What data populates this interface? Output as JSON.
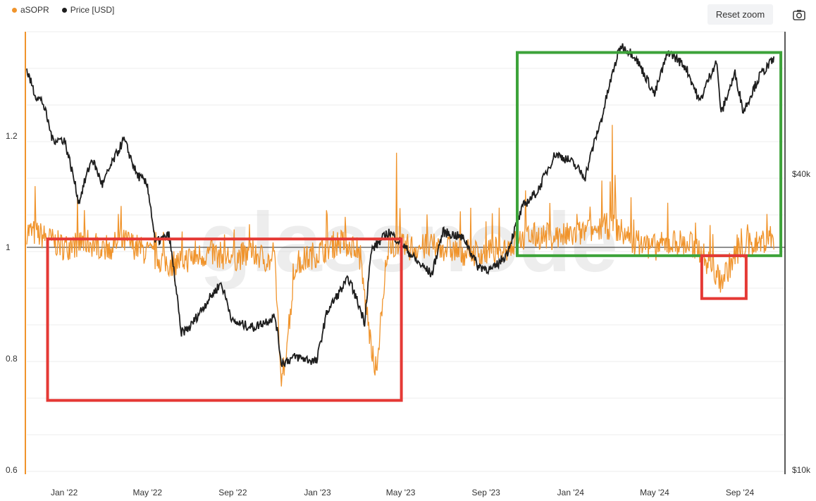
{
  "legend": {
    "asopr_label": "aSOPR",
    "price_label": "Price [USD]"
  },
  "toolbar": {
    "reset_zoom_label": "Reset zoom",
    "camera_icon": "camera-icon"
  },
  "watermark": "glassnode",
  "colors": {
    "asopr": "#f0942c",
    "price": "#1e1e1e",
    "highlight_red": "#e53935",
    "highlight_green": "#3da33a",
    "grid": "#ececec",
    "axis": "#222222"
  },
  "chart_data": {
    "type": "line",
    "x_ticks": [
      "Jan '22",
      "May '22",
      "Sep '22",
      "Jan '23",
      "May '23",
      "Sep '23",
      "Jan '24",
      "May '24",
      "Sep '24"
    ],
    "y_left_ticks": [
      "0.6",
      "0.8",
      "1",
      "1.2"
    ],
    "y_right_ticks": [
      "$10k",
      "$40k"
    ],
    "y_left_range": [
      0.6,
      1.4
    ],
    "reference_line": 1,
    "log_scale_right": true,
    "grid": true,
    "legend_position": "top-left",
    "series": [
      {
        "name": "aSOPR",
        "axis": "left",
        "keypoints": [
          [
            "2021-11-08",
            1.03
          ],
          [
            "2021-12-01",
            1.02
          ],
          [
            "2022-01-01",
            1.0
          ],
          [
            "2022-02-01",
            1.01
          ],
          [
            "2022-03-01",
            1.0
          ],
          [
            "2022-04-01",
            1.01
          ],
          [
            "2022-05-01",
            0.99
          ],
          [
            "2022-06-01",
            0.97
          ],
          [
            "2022-07-01",
            0.98
          ],
          [
            "2022-08-01",
            0.99
          ],
          [
            "2022-09-01",
            0.98
          ],
          [
            "2022-10-01",
            0.99
          ],
          [
            "2022-11-01",
            0.97
          ],
          [
            "2022-11-10",
            0.75
          ],
          [
            "2022-12-01",
            0.97
          ],
          [
            "2023-01-01",
            0.99
          ],
          [
            "2023-02-01",
            1.01
          ],
          [
            "2023-03-01",
            1.0
          ],
          [
            "2023-03-25",
            0.77
          ],
          [
            "2023-04-15",
            1.01
          ],
          [
            "2023-05-01",
            1.0
          ],
          [
            "2023-06-01",
            1.0
          ],
          [
            "2023-07-01",
            1.0
          ],
          [
            "2023-08-01",
            0.99
          ],
          [
            "2023-09-01",
            0.99
          ],
          [
            "2023-10-01",
            1.0
          ],
          [
            "2023-11-01",
            1.02
          ],
          [
            "2023-12-01",
            1.02
          ],
          [
            "2024-01-01",
            1.02
          ],
          [
            "2024-02-01",
            1.03
          ],
          [
            "2024-03-01",
            1.04
          ],
          [
            "2024-04-01",
            1.01
          ],
          [
            "2024-05-01",
            1.0
          ],
          [
            "2024-06-01",
            1.01
          ],
          [
            "2024-07-01",
            1.0
          ],
          [
            "2024-08-05",
            0.94
          ],
          [
            "2024-09-01",
            1.0
          ],
          [
            "2024-10-01",
            1.01
          ],
          [
            "2024-10-20",
            1.02
          ]
        ],
        "spikes": [
          [
            "2021-11-20",
            1.11
          ],
          [
            "2022-03-20",
            1.06
          ],
          [
            "2022-11-10",
            0.75
          ],
          [
            "2023-03-25",
            0.77
          ],
          [
            "2023-04-25",
            1.17
          ],
          [
            "2024-01-10",
            1.06
          ],
          [
            "2024-02-15",
            1.12
          ],
          [
            "2024-03-01",
            1.22
          ],
          [
            "2024-03-05",
            1.13
          ],
          [
            "2024-03-28",
            1.09
          ],
          [
            "2024-04-01",
            1.05
          ],
          [
            "2024-05-20",
            1.08
          ],
          [
            "2024-07-20",
            1.04
          ],
          [
            "2024-08-05",
            0.94
          ],
          [
            "2024-10-10",
            1.06
          ]
        ]
      },
      {
        "name": "Price [USD]",
        "axis": "right",
        "keypoints": [
          [
            "2021-11-08",
            65000
          ],
          [
            "2021-11-20",
            58000
          ],
          [
            "2021-12-01",
            56000
          ],
          [
            "2021-12-15",
            47000
          ],
          [
            "2022-01-01",
            47000
          ],
          [
            "2022-01-22",
            35000
          ],
          [
            "2022-02-10",
            43000
          ],
          [
            "2022-02-25",
            38000
          ],
          [
            "2022-03-28",
            47000
          ],
          [
            "2022-04-15",
            40000
          ],
          [
            "2022-05-01",
            38000
          ],
          [
            "2022-05-12",
            29000
          ],
          [
            "2022-06-01",
            30000
          ],
          [
            "2022-06-18",
            19000
          ],
          [
            "2022-07-01",
            19500
          ],
          [
            "2022-08-15",
            24000
          ],
          [
            "2022-09-01",
            20000
          ],
          [
            "2022-10-01",
            19500
          ],
          [
            "2022-11-01",
            20500
          ],
          [
            "2022-11-10",
            16500
          ],
          [
            "2022-12-01",
            17000
          ],
          [
            "2022-12-31",
            16600
          ],
          [
            "2023-01-15",
            21000
          ],
          [
            "2023-02-15",
            24500
          ],
          [
            "2023-03-10",
            20000
          ],
          [
            "2023-03-20",
            28000
          ],
          [
            "2023-04-14",
            30500
          ],
          [
            "2023-05-01",
            29000
          ],
          [
            "2023-05-25",
            26500
          ],
          [
            "2023-06-15",
            25000
          ],
          [
            "2023-07-01",
            30500
          ],
          [
            "2023-07-20",
            30000
          ],
          [
            "2023-08-01",
            29500
          ],
          [
            "2023-08-20",
            26000
          ],
          [
            "2023-09-10",
            25500
          ],
          [
            "2023-10-01",
            27500
          ],
          [
            "2023-10-25",
            34500
          ],
          [
            "2023-11-15",
            37000
          ],
          [
            "2023-12-10",
            44000
          ],
          [
            "2024-01-01",
            42500
          ],
          [
            "2024-01-22",
            39500
          ],
          [
            "2024-02-15",
            52000
          ],
          [
            "2024-03-13",
            73000
          ],
          [
            "2024-04-01",
            70000
          ],
          [
            "2024-05-01",
            58000
          ],
          [
            "2024-05-21",
            71000
          ],
          [
            "2024-06-15",
            66000
          ],
          [
            "2024-07-05",
            56000
          ],
          [
            "2024-07-29",
            68000
          ],
          [
            "2024-08-05",
            53000
          ],
          [
            "2024-08-25",
            64000
          ],
          [
            "2024-09-06",
            53500
          ],
          [
            "2024-09-30",
            63500
          ],
          [
            "2024-10-20",
            68500
          ]
        ]
      }
    ],
    "annotations": [
      {
        "type": "box",
        "color": "red",
        "from": "2021-12-08",
        "to": "2023-05-02",
        "y_range": [
          0.725,
          1.015
        ]
      },
      {
        "type": "box",
        "color": "green",
        "from": "2023-10-16",
        "to": "2024-10-30",
        "y_range": [
          0.985,
          1.35
        ]
      },
      {
        "type": "box",
        "color": "red",
        "from": "2024-07-08",
        "to": "2024-09-10",
        "y_range": [
          0.908,
          0.985
        ]
      }
    ]
  }
}
